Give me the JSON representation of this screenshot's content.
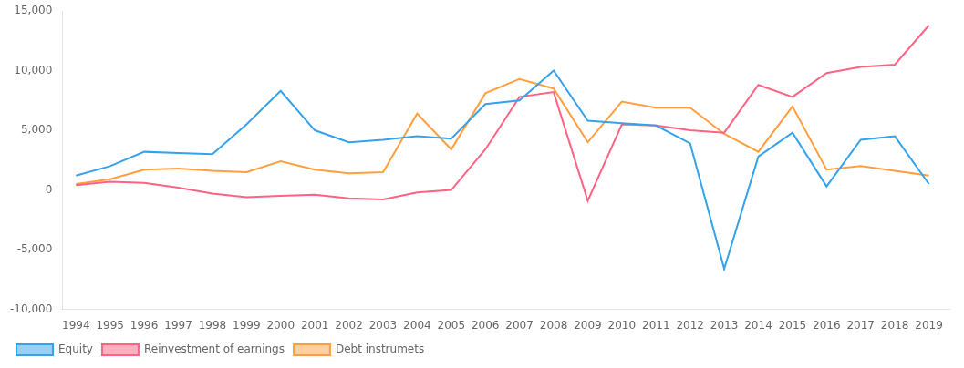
{
  "chart_data": {
    "type": "line",
    "x": [
      1994,
      1995,
      1996,
      1997,
      1998,
      1999,
      2000,
      2001,
      2002,
      2003,
      2004,
      2005,
      2006,
      2007,
      2008,
      2009,
      2010,
      2011,
      2012,
      2013,
      2014,
      2015,
      2016,
      2017,
      2018,
      2019
    ],
    "series": [
      {
        "name": "Equity",
        "values": [
          1200,
          2000,
          3200,
          3100,
          3000,
          5500,
          8300,
          5000,
          4000,
          4200,
          4500,
          4300,
          7200,
          7500,
          10000,
          5800,
          5600,
          5400,
          3900,
          -6600,
          2800,
          4800,
          300,
          4200,
          4500,
          500
        ]
      },
      {
        "name": "Reinvestment of earnings",
        "values": [
          400,
          700,
          600,
          200,
          -300,
          -600,
          -500,
          -400,
          -700,
          -800,
          -200,
          0,
          3400,
          7800,
          8200,
          -900,
          5500,
          5400,
          5000,
          4800,
          8800,
          7800,
          9800,
          10300,
          10500,
          13800
        ]
      },
      {
        "name": "Debt instrumets",
        "values": [
          500,
          900,
          1700,
          1800,
          1600,
          1500,
          2400,
          1700,
          1400,
          1500,
          6400,
          3400,
          8100,
          9300,
          8500,
          4000,
          7400,
          6900,
          6900,
          4700,
          3200,
          7000,
          1700,
          2000,
          1600,
          1200
        ]
      }
    ],
    "xlim": [
      1993.6,
      2019.6
    ],
    "xticks": [
      1994,
      1995,
      1996,
      1997,
      1998,
      1999,
      2000,
      2001,
      2002,
      2003,
      2004,
      2005,
      2006,
      2007,
      2008,
      2009,
      2010,
      2011,
      2012,
      2013,
      2014,
      2015,
      2016,
      2017,
      2018,
      2019
    ],
    "ylim": [
      -10000,
      15000
    ],
    "yticks": [
      {
        "value": -10000,
        "label": "-10,000"
      },
      {
        "value": -5000,
        "label": "-5,000"
      },
      0,
      {
        "value": 5000,
        "label": "5,000"
      },
      {
        "value": 10000,
        "label": "10,000"
      },
      {
        "value": 15000,
        "label": "15,000"
      }
    ],
    "grid": false,
    "legend": "lower left"
  }
}
